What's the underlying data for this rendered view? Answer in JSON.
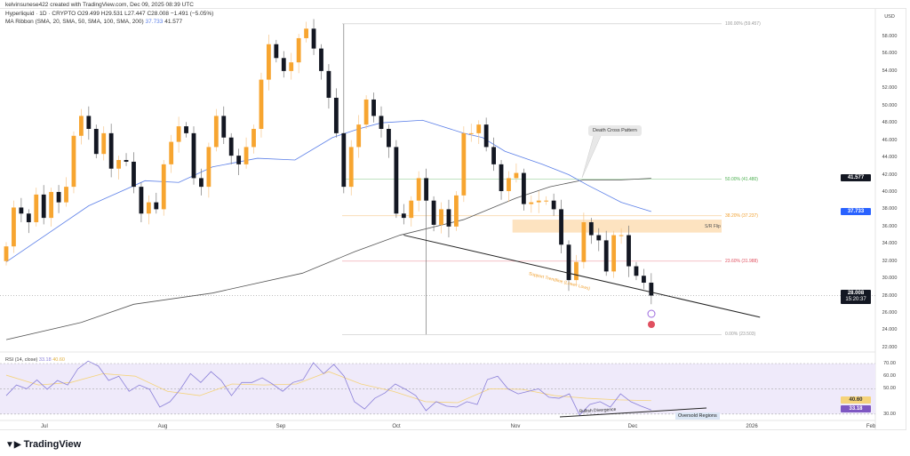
{
  "header": {
    "attribution": "kelvinsunese422 created with TradingView.com, Dec 09, 2025 08:39 UTC",
    "symbol_line": "Hyperliquid · 1D · CRYPTO  O29.499  H29.531  L27.447  C28.008  −1.491 (−5.05%)",
    "ma_line_prefix": "MA Ribbon (SMA, 20, SMA, 50, SMA, 100, SMA, 200)",
    "ma_val_blue": "37.733",
    "ma_val_gray": "41.577"
  },
  "price_axis": {
    "currency": "USD",
    "ticks": [
      "58.000",
      "56.000",
      "54.000",
      "52.000",
      "50.000",
      "48.000",
      "46.000",
      "44.000",
      "42.000",
      "40.000",
      "38.000",
      "36.000",
      "34.000",
      "32.000",
      "30.000",
      "28.000",
      "26.000",
      "24.000",
      "22.000"
    ],
    "badges": {
      "ma200": "41.577",
      "ma50": "37.733",
      "last": "28.008",
      "countdown": "15:20:37"
    }
  },
  "time_axis": [
    "Jul",
    "Aug",
    "Sep",
    "Oct",
    "Nov",
    "Dec",
    "2026",
    "Feb"
  ],
  "rsi": {
    "title": "RSI (14, close)",
    "value": "33.18",
    "ma_value": "40.60",
    "ticks": [
      "70.00",
      "60.00",
      "50.00",
      "30.00"
    ]
  },
  "annotations": {
    "death_cross": "Death Cross Pattern",
    "sr_flip": "S/R Flip",
    "trendline": "Support Trendline (Lower Lows)",
    "bullish_div": "Bullish Divergence",
    "oversold": "Oversold Regions"
  },
  "fib": [
    {
      "label": "100.00% (59.457)",
      "value": 59.457,
      "color": "#999999"
    },
    {
      "label": "50.00% (41.480)",
      "value": 41.48,
      "color": "#4caf50"
    },
    {
      "label": "38.20% (37.237)",
      "value": 37.237,
      "color": "#f0a030"
    },
    {
      "label": "23.60% (31.988)",
      "value": 31.988,
      "color": "#e05060"
    },
    {
      "label": "0.00% (23.503)",
      "value": 23.503,
      "color": "#999999"
    }
  ],
  "brand": "TradingView",
  "colors": {
    "up": "#f7a530",
    "down": "#131722",
    "ma50": "#5b7fe8",
    "ma200": "#555555",
    "rsi": "#8a7fd8",
    "rsi_ma": "#f5d37a",
    "zone": "#fde3c0"
  },
  "chart_data": {
    "type": "candlestick",
    "start_date": "2025-06-20",
    "end_date": "2025-12-09",
    "first_open": 32.0,
    "closes": [
      33.7,
      38.2,
      37.5,
      36.5,
      39.7,
      37,
      40,
      38.8,
      40.6,
      46.5,
      48.8,
      47.3,
      44.4,
      46.8,
      42.7,
      43.7,
      43.5,
      40.6,
      37.5,
      38.8,
      38,
      43.2,
      45.8,
      47.6,
      46.8,
      41.6,
      40.6,
      45.2,
      48.8,
      46.3,
      44.2,
      43.2,
      45.2,
      47.3,
      53,
      57.1,
      55.5,
      54,
      55,
      57.8,
      58.9,
      56.6,
      54,
      50.9,
      46.8,
      40.6,
      45.2,
      47.8,
      50.7,
      48.8,
      47.3,
      45.2,
      37.5,
      37,
      39,
      41.6,
      39,
      36.2,
      38,
      36,
      39.6,
      46.8,
      46.8,
      47.8,
      45.2,
      43.2,
      40.1,
      41.6,
      42.2,
      38.6,
      38.8,
      39,
      39,
      38,
      33.9,
      29.8,
      31.9,
      36.5,
      35,
      34.4,
      30.8,
      35,
      35,
      31.4,
      30.3,
      29.5,
      28.008
    ],
    "notable_wicks": [
      {
        "date": "2025-10-10",
        "low": 23.503
      },
      {
        "date": "2025-09-18",
        "high": 59.457
      }
    ],
    "ylim": [
      21,
      60
    ],
    "ma50": [
      [
        "2025-06-20",
        31.9
      ],
      [
        "2025-07-12",
        38.4
      ],
      [
        "2025-07-27",
        41.3
      ],
      [
        "2025-08-05",
        41.1
      ],
      [
        "2025-08-14",
        42.9
      ],
      [
        "2025-08-26",
        43.9
      ],
      [
        "2025-09-05",
        43.7
      ],
      [
        "2025-09-15",
        46.3
      ],
      [
        "2025-09-22",
        47.3
      ],
      [
        "2025-09-28",
        48
      ],
      [
        "2025-10-09",
        48.3
      ],
      [
        "2025-10-20",
        46.8
      ],
      [
        "2025-10-25",
        46.3
      ],
      [
        "2025-10-31",
        44.7
      ],
      [
        "2025-11-10",
        43.2
      ],
      [
        "2025-11-17",
        42
      ],
      [
        "2025-11-22",
        40.8
      ],
      [
        "2025-12-01",
        38.8
      ],
      [
        "2025-12-09",
        37.733
      ]
    ],
    "ma200": [
      [
        "2025-06-20",
        22.9
      ],
      [
        "2025-07-10",
        24.9
      ],
      [
        "2025-07-24",
        27
      ],
      [
        "2025-08-14",
        28.3
      ],
      [
        "2025-09-07",
        30.6
      ],
      [
        "2025-09-21",
        33.1
      ],
      [
        "2025-10-03",
        35
      ],
      [
        "2025-10-20",
        36.8
      ],
      [
        "2025-11-03",
        39.3
      ],
      [
        "2025-11-12",
        40.6
      ],
      [
        "2025-11-21",
        41.4
      ],
      [
        "2025-12-01",
        41.4
      ],
      [
        "2025-12-09",
        41.577
      ]
    ],
    "sr_zone": {
      "from": 35.3,
      "to": 36.8,
      "start": "2025-11-02"
    },
    "trendline": [
      [
        "2025-10-04",
        35
      ],
      [
        "2026-01-07",
        25.5
      ]
    ],
    "rsi_values": [
      44.6,
      53,
      50,
      57,
      49.6,
      56.6,
      53,
      65.8,
      72,
      68,
      56.6,
      60,
      48,
      53,
      49.6,
      35.5,
      39.8,
      49.6,
      62,
      55,
      63.6,
      56.6,
      44.6,
      55,
      55,
      58.7,
      53.8,
      48,
      55,
      57.3,
      70.7,
      62,
      69.3,
      60,
      39.8,
      34,
      42.5,
      46.8,
      53.8,
      49.6,
      44.6,
      32.7,
      39.8,
      36.3,
      35.5,
      39.8,
      37.6,
      57.3,
      60,
      50,
      46,
      48,
      50,
      43.3,
      42.5,
      46,
      29.2,
      37.6,
      39.8,
      35.5,
      46,
      39.8,
      36.3,
      33.18
    ],
    "rsi_ma_values": [
      60.8,
      53,
      55,
      62,
      60,
      48,
      44.6,
      53.8,
      53,
      53.8,
      63.6,
      53.8,
      48,
      39.8,
      39,
      50,
      49.6,
      44.6,
      42.5,
      41.2,
      40.6
    ],
    "rsi_ylim": [
      25,
      75
    ]
  }
}
